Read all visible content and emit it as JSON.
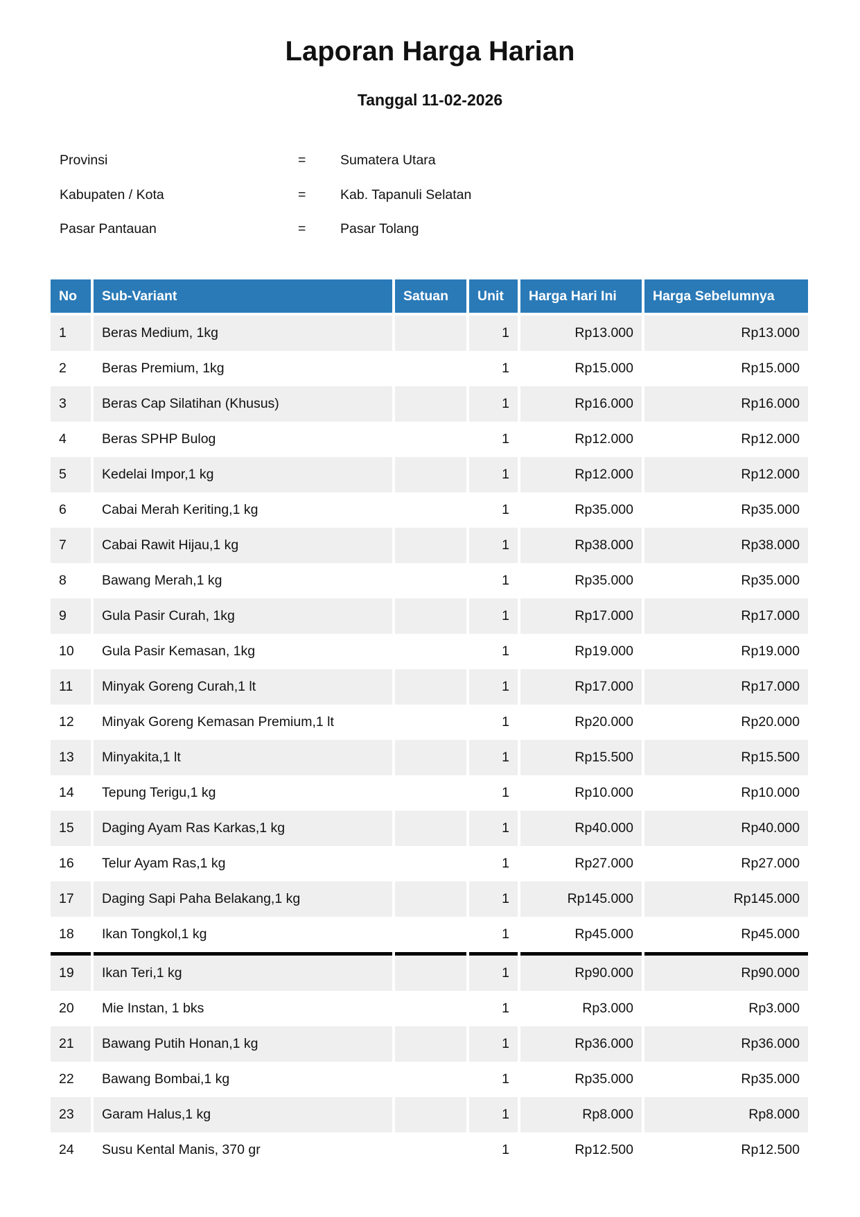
{
  "title": "Laporan Harga Harian",
  "subtitle": "Tanggal 11-02-2026",
  "info": [
    {
      "label": "Provinsi",
      "eq": "=",
      "value": "Sumatera Utara"
    },
    {
      "label": "Kabupaten / Kota",
      "eq": "=",
      "value": "Kab. Tapanuli Selatan"
    },
    {
      "label": "Pasar Pantauan",
      "eq": "=",
      "value": "Pasar Tolang"
    }
  ],
  "table": {
    "header_color": "#2a7ab8",
    "headers": [
      "No",
      "Sub-Variant",
      "Satuan",
      "Unit",
      "Harga Hari Ini",
      "Harga Sebelumnya"
    ],
    "rows": [
      [
        "1",
        "Beras Medium, 1kg",
        "",
        "1",
        "Rp13.000",
        "Rp13.000"
      ],
      [
        "2",
        "Beras Premium, 1kg",
        "",
        "1",
        "Rp15.000",
        "Rp15.000"
      ],
      [
        "3",
        "Beras Cap Silatihan (Khusus)",
        "",
        "1",
        "Rp16.000",
        "Rp16.000"
      ],
      [
        "4",
        "Beras SPHP Bulog",
        "",
        "1",
        "Rp12.000",
        "Rp12.000"
      ],
      [
        "5",
        "Kedelai Impor,1 kg",
        "",
        "1",
        "Rp12.000",
        "Rp12.000"
      ],
      [
        "6",
        "Cabai Merah Keriting,1 kg",
        "",
        "1",
        "Rp35.000",
        "Rp35.000"
      ],
      [
        "7",
        "Cabai Rawit Hijau,1 kg",
        "",
        "1",
        "Rp38.000",
        "Rp38.000"
      ],
      [
        "8",
        "Bawang Merah,1 kg",
        "",
        "1",
        "Rp35.000",
        "Rp35.000"
      ],
      [
        "9",
        "Gula Pasir Curah, 1kg",
        "",
        "1",
        "Rp17.000",
        "Rp17.000"
      ],
      [
        "10",
        "Gula Pasir Kemasan, 1kg",
        "",
        "1",
        "Rp19.000",
        "Rp19.000"
      ],
      [
        "11",
        "Minyak Goreng Curah,1 lt",
        "",
        "1",
        "Rp17.000",
        "Rp17.000"
      ],
      [
        "12",
        "Minyak Goreng Kemasan Premium,1 lt",
        "",
        "1",
        "Rp20.000",
        "Rp20.000"
      ],
      [
        "13",
        "Minyakita,1 lt",
        "",
        "1",
        "Rp15.500",
        "Rp15.500"
      ],
      [
        "14",
        "Tepung Terigu,1 kg",
        "",
        "1",
        "Rp10.000",
        "Rp10.000"
      ],
      [
        "15",
        "Daging Ayam Ras Karkas,1 kg",
        "",
        "1",
        "Rp40.000",
        "Rp40.000"
      ],
      [
        "16",
        "Telur Ayam Ras,1 kg",
        "",
        "1",
        "Rp27.000",
        "Rp27.000"
      ],
      [
        "17",
        "Daging Sapi Paha Belakang,1 kg",
        "",
        "1",
        "Rp145.000",
        "Rp145.000"
      ],
      [
        "18",
        "Ikan Tongkol,1 kg",
        "",
        "1",
        "Rp45.000",
        "Rp45.000"
      ],
      [
        "19",
        "Ikan Teri,1 kg",
        "",
        "1",
        "Rp90.000",
        "Rp90.000"
      ],
      [
        "20",
        "Mie Instan, 1 bks",
        "",
        "1",
        "Rp3.000",
        "Rp3.000"
      ],
      [
        "21",
        "Bawang Putih Honan,1 kg",
        "",
        "1",
        "Rp36.000",
        "Rp36.000"
      ],
      [
        "22",
        "Bawang Bombai,1 kg",
        "",
        "1",
        "Rp35.000",
        "Rp35.000"
      ],
      [
        "23",
        "Garam Halus,1 kg",
        "",
        "1",
        "Rp8.000",
        "Rp8.000"
      ],
      [
        "24",
        "Susu Kental Manis, 370 gr",
        "",
        "1",
        "Rp12.500",
        "Rp12.500"
      ]
    ]
  }
}
